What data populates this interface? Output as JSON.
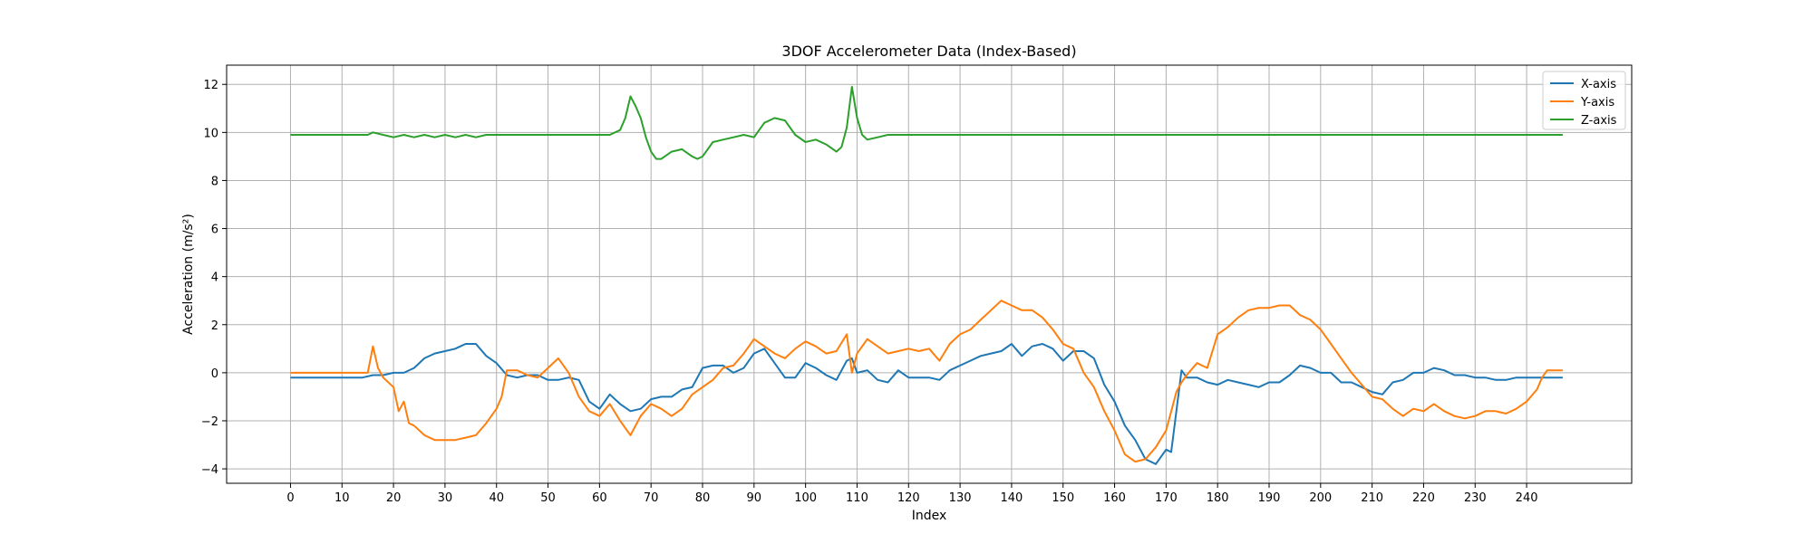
{
  "chart_data": {
    "type": "line",
    "title": "3DOF Accelerometer Data (Index-Based)",
    "xlabel": "Index",
    "ylabel": "Acceleration (m/s²)",
    "xlim": [
      -12.4,
      260.4
    ],
    "ylim": [
      -4.6,
      12.8
    ],
    "xticks": [
      0,
      10,
      20,
      30,
      40,
      50,
      60,
      70,
      80,
      90,
      100,
      110,
      120,
      130,
      140,
      150,
      160,
      170,
      180,
      190,
      200,
      210,
      220,
      230,
      240
    ],
    "yticks": [
      -4,
      -2,
      0,
      2,
      4,
      6,
      8,
      10,
      12
    ],
    "grid": true,
    "legend_position": "top-right",
    "series": [
      {
        "name": "X-axis",
        "color": "#1f77b4",
        "x": [
          0,
          5,
          10,
          14,
          16,
          18,
          20,
          22,
          24,
          26,
          28,
          30,
          32,
          34,
          36,
          38,
          40,
          42,
          44,
          46,
          48,
          50,
          52,
          54,
          56,
          58,
          60,
          62,
          64,
          66,
          68,
          70,
          72,
          74,
          76,
          78,
          80,
          82,
          84,
          86,
          88,
          90,
          92,
          94,
          96,
          98,
          100,
          102,
          104,
          106,
          108,
          109,
          110,
          112,
          114,
          116,
          118,
          120,
          122,
          124,
          126,
          128,
          130,
          132,
          134,
          136,
          138,
          140,
          142,
          144,
          146,
          148,
          150,
          152,
          154,
          156,
          158,
          160,
          162,
          164,
          166,
          168,
          170,
          171,
          173,
          174,
          176,
          178,
          180,
          182,
          184,
          186,
          188,
          190,
          192,
          194,
          196,
          198,
          200,
          202,
          204,
          206,
          208,
          210,
          212,
          214,
          216,
          218,
          220,
          222,
          224,
          226,
          228,
          230,
          232,
          234,
          236,
          238,
          240,
          242,
          244,
          246,
          247
        ],
        "y": [
          -0.2,
          -0.2,
          -0.2,
          -0.2,
          -0.1,
          -0.1,
          0.0,
          0.0,
          0.2,
          0.6,
          0.8,
          0.9,
          1.0,
          1.2,
          1.2,
          0.7,
          0.4,
          -0.1,
          -0.2,
          -0.1,
          -0.1,
          -0.3,
          -0.3,
          -0.2,
          -0.3,
          -1.2,
          -1.5,
          -0.9,
          -1.3,
          -1.6,
          -1.5,
          -1.1,
          -1.0,
          -1.0,
          -0.7,
          -0.6,
          0.2,
          0.3,
          0.3,
          0.0,
          0.2,
          0.8,
          1.0,
          0.4,
          -0.2,
          -0.2,
          0.4,
          0.2,
          -0.1,
          -0.3,
          0.5,
          0.6,
          0.0,
          0.1,
          -0.3,
          -0.4,
          0.1,
          -0.2,
          -0.2,
          -0.2,
          -0.3,
          0.1,
          0.3,
          0.5,
          0.7,
          0.8,
          0.9,
          1.2,
          0.7,
          1.1,
          1.2,
          1.0,
          0.5,
          0.9,
          0.9,
          0.6,
          -0.5,
          -1.2,
          -2.2,
          -2.8,
          -3.6,
          -3.8,
          -3.2,
          -3.3,
          0.1,
          -0.2,
          -0.2,
          -0.4,
          -0.5,
          -0.3,
          -0.4,
          -0.5,
          -0.6,
          -0.4,
          -0.4,
          -0.1,
          0.3,
          0.2,
          0.0,
          0.0,
          -0.4,
          -0.4,
          -0.6,
          -0.8,
          -0.9,
          -0.4,
          -0.3,
          0.0,
          0.0,
          0.2,
          0.1,
          -0.1,
          -0.1,
          -0.2,
          -0.2,
          -0.3,
          -0.3,
          -0.2,
          -0.2,
          -0.2,
          -0.2,
          -0.2,
          -0.2
        ]
      },
      {
        "name": "Y-axis",
        "color": "#ff7f0e",
        "x": [
          0,
          5,
          10,
          15,
          16,
          17,
          18,
          20,
          21,
          22,
          23,
          24,
          26,
          28,
          30,
          32,
          34,
          36,
          38,
          40,
          41,
          42,
          44,
          46,
          48,
          50,
          52,
          54,
          56,
          58,
          60,
          62,
          64,
          66,
          68,
          70,
          72,
          74,
          76,
          78,
          80,
          82,
          84,
          86,
          88,
          90,
          92,
          94,
          96,
          98,
          100,
          102,
          104,
          106,
          108,
          109,
          110,
          112,
          114,
          116,
          118,
          120,
          122,
          124,
          126,
          128,
          130,
          132,
          134,
          136,
          138,
          140,
          142,
          144,
          146,
          148,
          150,
          152,
          154,
          156,
          158,
          160,
          162,
          164,
          166,
          168,
          170,
          172,
          173,
          174,
          176,
          178,
          180,
          182,
          184,
          186,
          188,
          190,
          192,
          194,
          196,
          198,
          200,
          202,
          204,
          206,
          208,
          210,
          212,
          214,
          216,
          218,
          220,
          222,
          224,
          226,
          228,
          230,
          232,
          234,
          236,
          238,
          240,
          242,
          243,
          244,
          246,
          247
        ],
        "y": [
          0.0,
          0.0,
          0.0,
          0.0,
          1.1,
          0.2,
          -0.2,
          -0.6,
          -1.6,
          -1.2,
          -2.1,
          -2.2,
          -2.6,
          -2.8,
          -2.8,
          -2.8,
          -2.7,
          -2.6,
          -2.1,
          -1.5,
          -1.0,
          0.1,
          0.1,
          -0.1,
          -0.2,
          0.2,
          0.6,
          0.0,
          -1.0,
          -1.6,
          -1.8,
          -1.3,
          -2.0,
          -2.6,
          -1.8,
          -1.3,
          -1.5,
          -1.8,
          -1.5,
          -0.9,
          -0.6,
          -0.3,
          0.2,
          0.3,
          0.8,
          1.4,
          1.1,
          0.8,
          0.6,
          1.0,
          1.3,
          1.1,
          0.8,
          0.9,
          1.6,
          0.0,
          0.8,
          1.4,
          1.1,
          0.8,
          0.9,
          1.0,
          0.9,
          1.0,
          0.5,
          1.2,
          1.6,
          1.8,
          2.2,
          2.6,
          3.0,
          2.8,
          2.6,
          2.6,
          2.3,
          1.8,
          1.2,
          1.0,
          0.0,
          -0.6,
          -1.6,
          -2.4,
          -3.4,
          -3.7,
          -3.6,
          -3.1,
          -2.4,
          -0.8,
          -0.4,
          -0.1,
          0.4,
          0.2,
          1.6,
          1.9,
          2.3,
          2.6,
          2.7,
          2.7,
          2.8,
          2.8,
          2.4,
          2.2,
          1.8,
          1.2,
          0.6,
          0.0,
          -0.5,
          -1.0,
          -1.1,
          -1.5,
          -1.8,
          -1.5,
          -1.6,
          -1.3,
          -1.6,
          -1.8,
          -1.9,
          -1.8,
          -1.6,
          -1.6,
          -1.7,
          -1.5,
          -1.2,
          -0.7,
          -0.2,
          0.1,
          0.1,
          0.1
        ]
      },
      {
        "name": "Z-axis",
        "color": "#2ca02c",
        "x": [
          0,
          5,
          10,
          15,
          16,
          18,
          20,
          22,
          24,
          26,
          28,
          30,
          32,
          34,
          36,
          38,
          40,
          45,
          50,
          55,
          58,
          60,
          62,
          64,
          65,
          66,
          67,
          68,
          69,
          70,
          71,
          72,
          74,
          76,
          78,
          79,
          80,
          82,
          84,
          86,
          88,
          90,
          92,
          94,
          96,
          98,
          100,
          102,
          104,
          106,
          107,
          108,
          109,
          110,
          111,
          112,
          114,
          116,
          118,
          120,
          130,
          140,
          150,
          160,
          170,
          180,
          190,
          200,
          210,
          220,
          230,
          240,
          247
        ],
        "y": [
          9.9,
          9.9,
          9.9,
          9.9,
          10.0,
          9.9,
          9.8,
          9.9,
          9.8,
          9.9,
          9.8,
          9.9,
          9.8,
          9.9,
          9.8,
          9.9,
          9.9,
          9.9,
          9.9,
          9.9,
          9.9,
          9.9,
          9.9,
          10.1,
          10.6,
          11.5,
          11.1,
          10.6,
          9.8,
          9.2,
          8.9,
          8.9,
          9.2,
          9.3,
          9.0,
          8.9,
          9.0,
          9.6,
          9.7,
          9.8,
          9.9,
          9.8,
          10.4,
          10.6,
          10.5,
          9.9,
          9.6,
          9.7,
          9.5,
          9.2,
          9.4,
          10.2,
          11.9,
          10.6,
          9.9,
          9.7,
          9.8,
          9.9,
          9.9,
          9.9,
          9.9,
          9.9,
          9.9,
          9.9,
          9.9,
          9.9,
          9.9,
          9.9,
          9.9,
          9.9,
          9.9,
          9.9,
          9.9
        ]
      }
    ]
  }
}
